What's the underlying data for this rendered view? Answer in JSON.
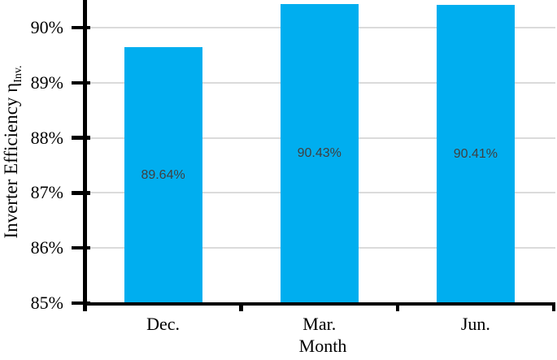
{
  "chart_data": {
    "type": "bar",
    "title": "",
    "categories": [
      "Dec.",
      "Mar.",
      "Jun."
    ],
    "values": [
      89.64,
      90.43,
      90.41
    ],
    "bar_labels": [
      "89.64%",
      "90.43%",
      "90.41%"
    ],
    "xlabel": "Month",
    "ylabel": {
      "main": "Inverter Efficiency η",
      "sub": "Inv."
    },
    "yticks": [
      {
        "value": 85,
        "label": "85%"
      },
      {
        "value": 86,
        "label": "86%"
      },
      {
        "value": 87,
        "label": "87%"
      },
      {
        "value": 88,
        "label": "88%"
      },
      {
        "value": 89,
        "label": "89%"
      },
      {
        "value": 90,
        "label": "90%"
      }
    ],
    "ylim": [
      85,
      90.5
    ],
    "grid": true,
    "legend": "none",
    "colors": {
      "bar": "#00AEEF",
      "grid": "#DBDBDB",
      "axis": "#000000",
      "data_label": "#404040"
    }
  }
}
